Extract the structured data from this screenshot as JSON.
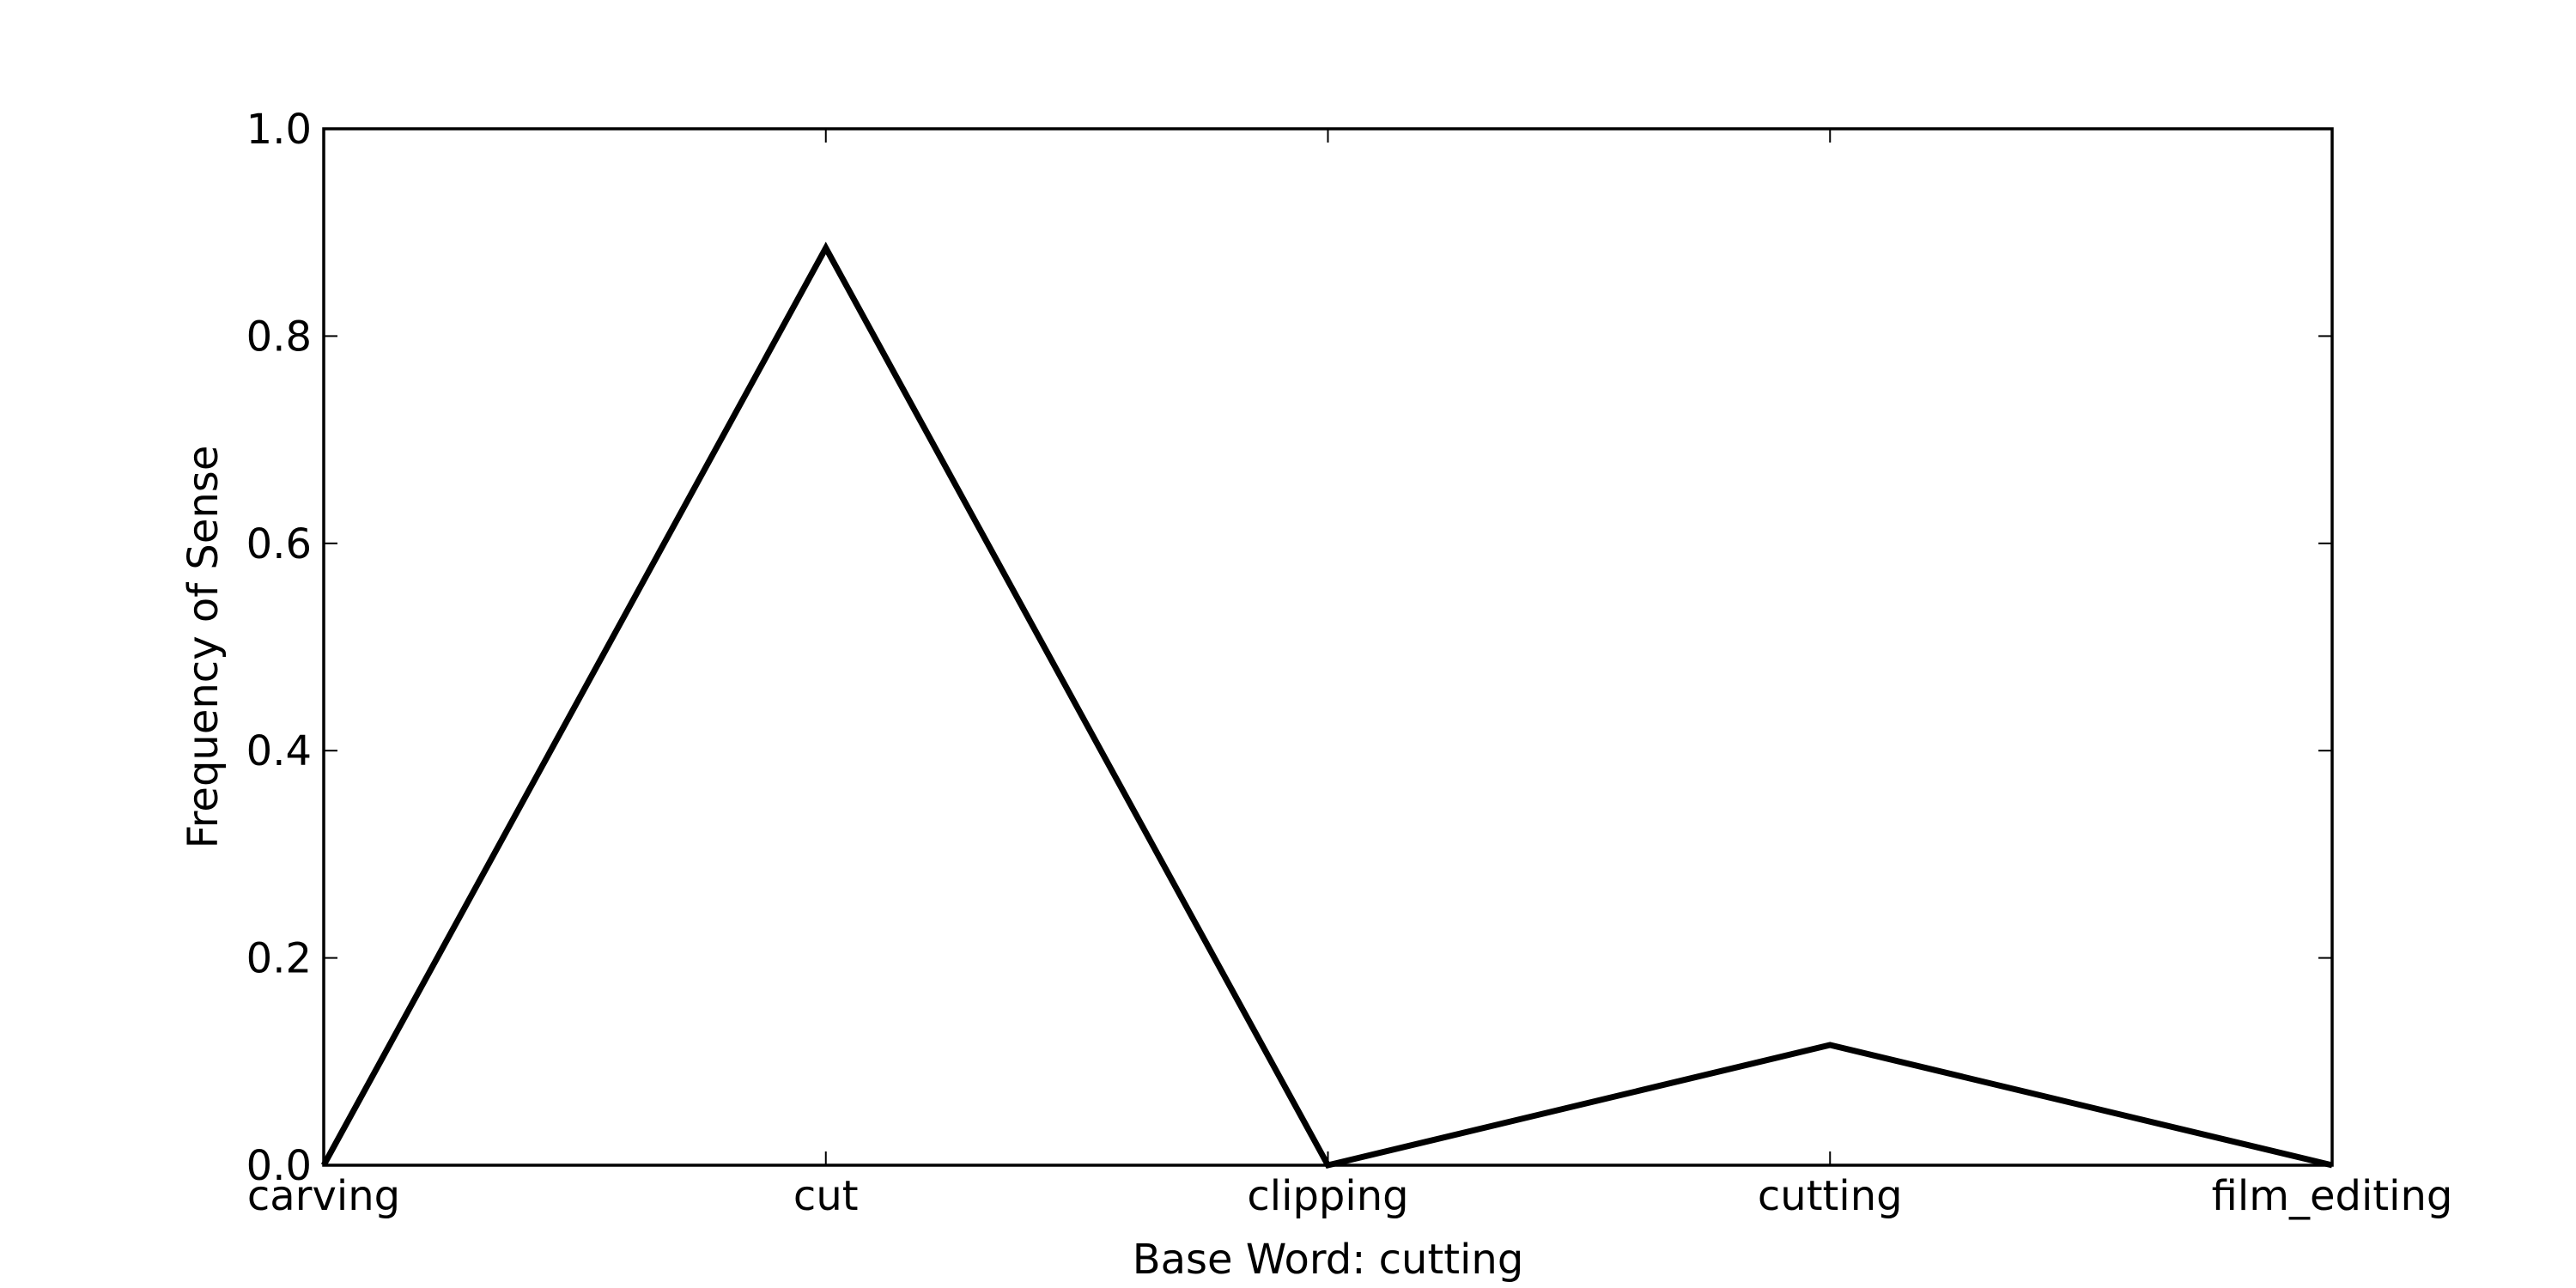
{
  "chart_data": {
    "type": "line",
    "categories": [
      "carving",
      "cut",
      "clipping",
      "cutting",
      "film_editing"
    ],
    "series": [
      {
        "values": [
          0.0,
          0.885,
          0.0,
          0.116,
          0.0
        ]
      }
    ],
    "xlabel": "Base Word: cutting",
    "ylabel": "Frequency of Sense",
    "ylim": [
      0.0,
      1.0
    ],
    "yticks": [
      "0.0",
      "0.2",
      "0.4",
      "0.6",
      "0.8",
      "1.0"
    ],
    "grid": false,
    "colors": {
      "line": "#000000",
      "frame": "#000000",
      "background": "#ffffff"
    }
  }
}
